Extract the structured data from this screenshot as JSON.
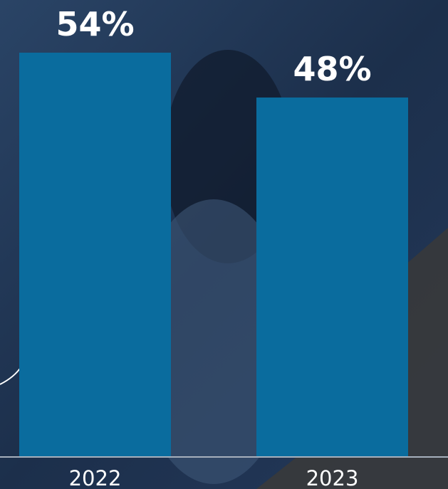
{
  "chart_data": {
    "type": "bar",
    "categories": [
      "2022",
      "2023"
    ],
    "values": [
      54,
      48
    ],
    "value_labels": [
      "54%",
      "48%"
    ],
    "color": "#0a6c9e"
  }
}
